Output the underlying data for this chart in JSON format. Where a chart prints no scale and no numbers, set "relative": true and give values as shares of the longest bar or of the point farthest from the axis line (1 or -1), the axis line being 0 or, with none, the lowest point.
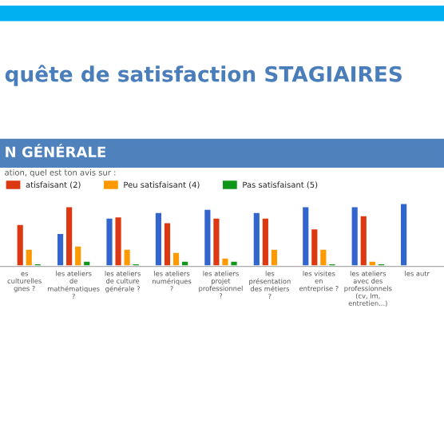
{
  "chart_data": {
    "type": "bar",
    "relative": true,
    "title": "quête de satisfaction STAGIAIRES",
    "subtitle": "N GÉNÉRALE",
    "annotations": [
      "ation, quel est ton avis sur :"
    ],
    "categories": [
      "es\nculturelles\ngnes ?",
      "les ateliers\nde\nmathématiques\n?",
      "les ateliers\nde culture\ngénérale ?",
      "les ateliers\nnumériques\n?",
      "les ateliers\nprojet\nprofessionnel\n?",
      "les\nprésentation\ndes métiers\n?",
      "les visites\nen\nentreprise ?",
      "les ateliers\navec des\nprofessionnels\n(cv, lm,\nentretien...)",
      "les autr"
    ],
    "series": [
      {
        "color": "#3366cc",
        "values": [
          null,
          0.53,
          0.77,
          0.86,
          0.91,
          0.86,
          0.95,
          0.95,
          1
        ]
      },
      {
        "name": "atisfaisant (2)",
        "color": "#dc3912",
        "values": [
          0.67,
          0.95,
          0.79,
          0.7,
          0.77,
          0.77,
          0.6,
          0.81,
          null
        ]
      },
      {
        "name": "Peu satisfaisant (4)",
        "color": "#ff9900",
        "values": [
          0.28,
          0.33,
          0.28,
          0.23,
          0.14,
          0.28,
          0.28,
          0.09,
          null
        ]
      },
      {
        "name": "Pas satisfaisant (5)",
        "color": "#109618",
        "values": [
          0.05,
          0.09,
          0.05,
          0.09,
          0.09,
          null,
          0.05,
          0.05,
          null
        ]
      }
    ],
    "legend": "top left"
  }
}
